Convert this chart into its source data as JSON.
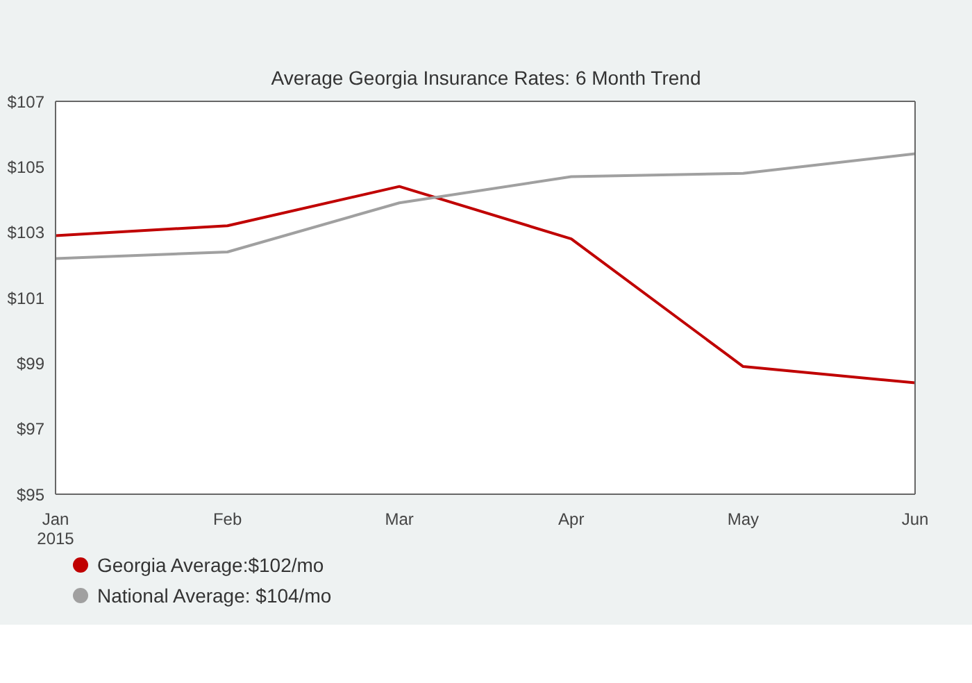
{
  "chart_data": {
    "type": "line",
    "title": "Average Georgia Insurance Rates: 6 Month Trend",
    "categories": [
      "Jan\n2015",
      "Feb",
      "Mar",
      "Apr",
      "May",
      "Jun"
    ],
    "series": [
      {
        "name": "Georgia Average:$102/mo",
        "color": "#c00000",
        "values": [
          102.9,
          103.2,
          104.4,
          102.8,
          98.9,
          98.4
        ]
      },
      {
        "name": "National Average: $104/mo",
        "color": "#a0a0a0",
        "values": [
          102.2,
          102.4,
          103.9,
          104.7,
          104.8,
          105.4
        ]
      }
    ],
    "ylim": [
      95,
      107
    ],
    "yticks": [
      {
        "value": 95,
        "label": "$95"
      },
      {
        "value": 97,
        "label": "$97"
      },
      {
        "value": 99,
        "label": "$99"
      },
      {
        "value": 101,
        "label": "$101"
      },
      {
        "value": 103,
        "label": "$103"
      },
      {
        "value": 105,
        "label": "$105"
      },
      {
        "value": 107,
        "label": "$107"
      }
    ],
    "grid": false,
    "legend": "bottom left",
    "marker": "none",
    "line_style": "solid"
  }
}
